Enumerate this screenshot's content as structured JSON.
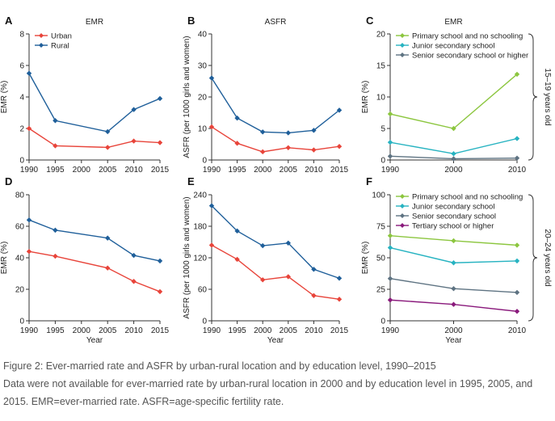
{
  "caption": {
    "title": "Figure 2: Ever-married rate and ASFR by urban-rural location and by education level, 1990–2015",
    "note": "Data were not available for ever-married rate by urban-rural location in 2000 and by education level in 1995, 2005, and 2015. EMR=ever-married rate. ASFR=age-specific fertility rate."
  },
  "colors": {
    "urban": "#e8443a",
    "rural": "#1f5f9a",
    "primary": "#8cc63f",
    "junior": "#27b3c1",
    "senior": "#5e7382",
    "tertiary": "#8a1a7c",
    "axis": "#333333"
  },
  "icons": {
    "bracket": "curly-brace-icon"
  },
  "row_labels": [
    "15–19 years old",
    "20–24 years old"
  ],
  "chart_data": [
    {
      "panel": "A",
      "title": "EMR",
      "type": "line",
      "x": [
        1990,
        1995,
        2005,
        2010,
        2015
      ],
      "xlim": [
        1990,
        2015
      ],
      "xticks": [
        1990,
        1995,
        2000,
        2005,
        2010,
        2015
      ],
      "ylim": [
        0,
        8
      ],
      "yticks": [
        0,
        2,
        4,
        6,
        8
      ],
      "xlabel": "",
      "ylabel": "EMR (%)",
      "legend": "top-left",
      "series": [
        {
          "name": "Urban",
          "color_key": "urban",
          "values": [
            2.0,
            0.9,
            0.8,
            1.2,
            1.1
          ]
        },
        {
          "name": "Rural",
          "color_key": "rural",
          "values": [
            5.5,
            2.5,
            1.8,
            3.2,
            3.9
          ]
        }
      ]
    },
    {
      "panel": "B",
      "title": "ASFR",
      "type": "line",
      "x": [
        1990,
        1995,
        2000,
        2005,
        2010,
        2015
      ],
      "xlim": [
        1990,
        2015
      ],
      "xticks": [
        1990,
        1995,
        2000,
        2005,
        2010,
        2015
      ],
      "ylim": [
        0,
        40
      ],
      "yticks": [
        0,
        10,
        20,
        30,
        40
      ],
      "xlabel": "",
      "ylabel": "ASFR (per 1000 girls and women)",
      "legend": "none",
      "series": [
        {
          "name": "Urban",
          "color_key": "urban",
          "values": [
            10.5,
            5.3,
            2.6,
            3.9,
            3.2,
            4.3
          ]
        },
        {
          "name": "Rural",
          "color_key": "rural",
          "values": [
            26.0,
            13.3,
            8.9,
            8.6,
            9.4,
            15.8
          ]
        }
      ]
    },
    {
      "panel": "C",
      "title": "EMR",
      "type": "line",
      "x": [
        1990,
        2000,
        2010
      ],
      "xlim": [
        1990,
        2010
      ],
      "xticks": [
        1990,
        2000,
        2010
      ],
      "ylim": [
        0,
        20
      ],
      "yticks": [
        0,
        5,
        10,
        15,
        20
      ],
      "xlabel": "",
      "ylabel": "EMR (%)",
      "legend": "top-left",
      "series": [
        {
          "name": "Primary school and no schooling",
          "color_key": "primary",
          "values": [
            7.3,
            5.0,
            13.6
          ]
        },
        {
          "name": "Junior secondary school",
          "color_key": "junior",
          "values": [
            2.8,
            1.0,
            3.4
          ]
        },
        {
          "name": "Senior secondary school or higher",
          "color_key": "senior",
          "values": [
            0.6,
            0.2,
            0.3
          ]
        }
      ]
    },
    {
      "panel": "D",
      "title": "",
      "type": "line",
      "x": [
        1990,
        1995,
        2005,
        2010,
        2015
      ],
      "xlim": [
        1990,
        2015
      ],
      "xticks": [
        1990,
        1995,
        2000,
        2005,
        2010,
        2015
      ],
      "ylim": [
        0,
        80
      ],
      "yticks": [
        0,
        20,
        40,
        60,
        80
      ],
      "xlabel": "Year",
      "ylabel": "EMR (%)",
      "legend": "none",
      "series": [
        {
          "name": "Urban",
          "color_key": "urban",
          "values": [
            44.0,
            41.0,
            33.5,
            25.0,
            18.5
          ]
        },
        {
          "name": "Rural",
          "color_key": "rural",
          "values": [
            64.0,
            57.5,
            52.5,
            41.5,
            38.0
          ]
        }
      ]
    },
    {
      "panel": "E",
      "title": "",
      "type": "line",
      "x": [
        1990,
        1995,
        2000,
        2005,
        2010,
        2015
      ],
      "xlim": [
        1990,
        2015
      ],
      "xticks": [
        1990,
        1995,
        2000,
        2005,
        2010,
        2015
      ],
      "ylim": [
        0,
        240
      ],
      "yticks": [
        0,
        60,
        120,
        180,
        240
      ],
      "xlabel": "Year",
      "ylabel": "ASFR (per 1000 girls and women)",
      "legend": "none",
      "series": [
        {
          "name": "Urban",
          "color_key": "urban",
          "values": [
            144,
            117,
            78,
            84,
            48,
            41
          ]
        },
        {
          "name": "Rural",
          "color_key": "rural",
          "values": [
            219,
            171,
            143,
            148,
            98,
            81
          ]
        }
      ]
    },
    {
      "panel": "F",
      "title": "",
      "type": "line",
      "x": [
        1990,
        2000,
        2010
      ],
      "xlim": [
        1990,
        2010
      ],
      "xticks": [
        1990,
        2000,
        2010
      ],
      "ylim": [
        0,
        100
      ],
      "yticks": [
        0,
        25,
        50,
        75,
        100
      ],
      "xlabel": "Year",
      "ylabel": "EMR (%)",
      "legend": "top-left",
      "series": [
        {
          "name": "Primary school and no schooling",
          "color_key": "primary",
          "values": [
            67.5,
            63.5,
            60.0
          ]
        },
        {
          "name": "Junior secondary school",
          "color_key": "junior",
          "values": [
            58.0,
            46.0,
            47.5
          ]
        },
        {
          "name": "Senior secondary school",
          "color_key": "senior",
          "values": [
            33.5,
            25.5,
            22.5
          ]
        },
        {
          "name": "Tertiary school or higher",
          "color_key": "tertiary",
          "values": [
            16.5,
            13.0,
            7.5
          ]
        }
      ]
    }
  ]
}
